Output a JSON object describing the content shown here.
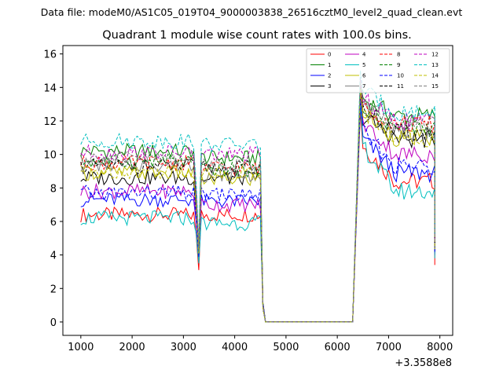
{
  "chart_data": {
    "type": "line",
    "suptitle": "Data file: modeM0/AS1C05_019T04_9000003838_26516cztM0_level2_quad_clean.evt",
    "title": "Quadrant 1 module wise count rates with 100.0s bins.",
    "x_offset_label": "+3.3588e8",
    "xlim": [
      650,
      8250
    ],
    "ylim": [
      -0.8,
      16.5
    ],
    "x_ticks": [
      1000,
      2000,
      3000,
      4000,
      5000,
      6000,
      7000,
      8000
    ],
    "x_tick_labels": [
      "1000",
      "2000",
      "3000",
      "4000",
      "5000",
      "6000",
      "7000",
      "8000"
    ],
    "y_ticks": [
      0,
      2,
      4,
      6,
      8,
      10,
      12,
      14,
      16
    ],
    "y_tick_labels": [
      "0",
      "2",
      "4",
      "6",
      "8",
      "10",
      "12",
      "14",
      "16"
    ],
    "x_segments": [
      [
        1000,
        3200
      ],
      [
        3300,
        4500
      ],
      [
        6500,
        7900
      ]
    ],
    "gap_x": [
      4550,
      4600,
      6300
    ],
    "series": [
      {
        "name": "0",
        "color": "#ff0000",
        "dash": false,
        "a": 6.4,
        "b": 6.4,
        "c": 8.4,
        "min": 3.1,
        "post": 12.6
      },
      {
        "name": "1",
        "color": "#008000",
        "dash": false,
        "a": 10.2,
        "b": 9.8,
        "c": 12.3,
        "min": 4.1,
        "post": 14.3
      },
      {
        "name": "2",
        "color": "#0000ff",
        "dash": false,
        "a": 7.3,
        "b": 7.2,
        "c": 8.9,
        "min": 3.8,
        "post": 13.0
      },
      {
        "name": "3",
        "color": "#000000",
        "dash": false,
        "a": 8.6,
        "b": 8.6,
        "c": 10.9,
        "min": 3.9,
        "post": 13.6
      },
      {
        "name": "4",
        "color": "#bf00bf",
        "dash": false,
        "a": 7.8,
        "b": 7.0,
        "c": 10.0,
        "min": 3.7,
        "post": 13.8
      },
      {
        "name": "5",
        "color": "#00bfbf",
        "dash": false,
        "a": 6.2,
        "b": 5.9,
        "c": 7.8,
        "min": 3.5,
        "post": 13.2
      },
      {
        "name": "6",
        "color": "#bfbf00",
        "dash": false,
        "a": 8.9,
        "b": 8.5,
        "c": 11.0,
        "min": 4.0,
        "post": 14.0
      },
      {
        "name": "7",
        "color": "#808080",
        "dash": false,
        "a": 9.4,
        "b": 8.8,
        "c": 11.4,
        "min": 4.2,
        "post": 14.5
      },
      {
        "name": "8",
        "color": "#ff0000",
        "dash": true,
        "a": 9.5,
        "b": 9.2,
        "c": 11.8,
        "min": 4.4,
        "post": 14.2
      },
      {
        "name": "9",
        "color": "#008000",
        "dash": true,
        "a": 9.6,
        "b": 9.1,
        "c": 11.6,
        "min": 4.5,
        "post": 14.4
      },
      {
        "name": "10",
        "color": "#0000ff",
        "dash": true,
        "a": 7.7,
        "b": 7.6,
        "c": 9.3,
        "min": 3.9,
        "post": 13.3
      },
      {
        "name": "11",
        "color": "#000000",
        "dash": true,
        "a": 9.3,
        "b": 9.2,
        "c": 11.3,
        "min": 4.3,
        "post": 14.1
      },
      {
        "name": "12",
        "color": "#bf00bf",
        "dash": true,
        "a": 10.1,
        "b": 10.0,
        "c": 12.0,
        "min": 4.6,
        "post": 14.6
      },
      {
        "name": "13",
        "color": "#00bfbf",
        "dash": true,
        "a": 10.8,
        "b": 10.6,
        "c": 12.5,
        "min": 4.8,
        "post": 15.0
      },
      {
        "name": "14",
        "color": "#bfbf00",
        "dash": true,
        "a": 9.0,
        "b": 8.9,
        "c": 11.0,
        "min": 4.1,
        "post": 13.9
      },
      {
        "name": "15",
        "color": "#808080",
        "dash": true,
        "a": 9.8,
        "b": 9.5,
        "c": 11.7,
        "min": 4.4,
        "post": 14.4
      }
    ]
  }
}
